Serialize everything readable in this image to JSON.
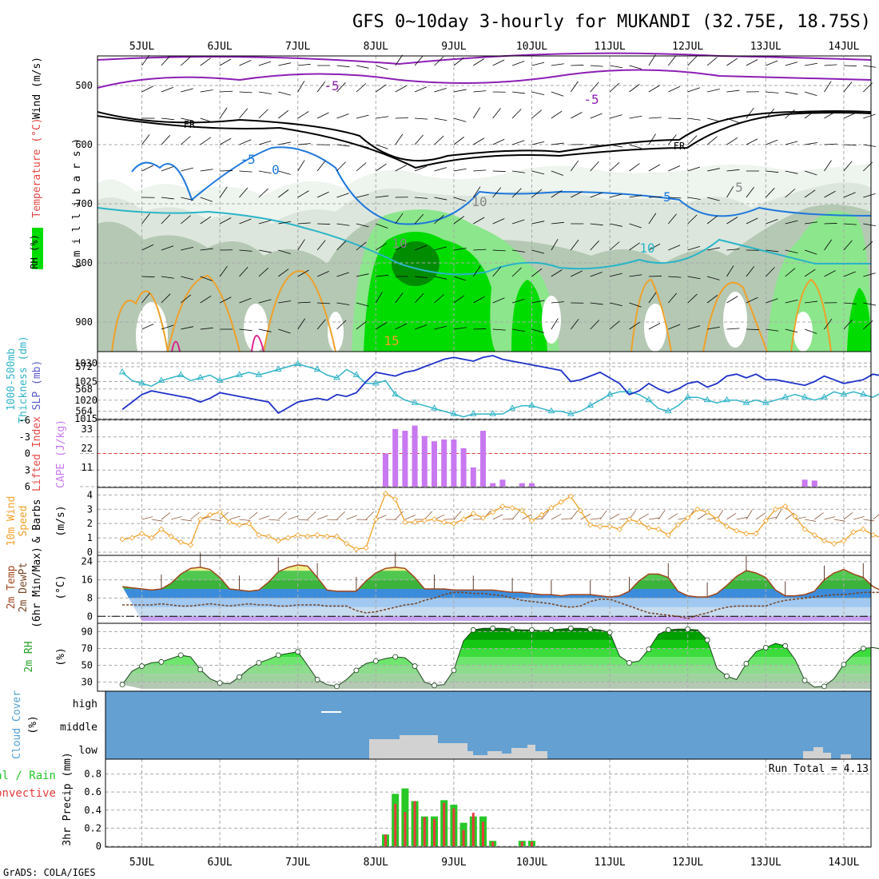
{
  "title": "GFS 0~10day 3-hourly for MUKANDI (32.75E, 18.75S)",
  "credit": "GrADS: COLA/IGES",
  "dates": [
    "5JUL",
    "6JUL",
    "7JUL",
    "8JUL",
    "9JUL",
    "10JUL",
    "11JUL",
    "12JUL",
    "13JUL",
    "14JUL"
  ],
  "panel_labels": {
    "upper_air": [
      "RH (%)",
      "Temperature (°C)",
      "Wind (m/s)",
      "( m i l l i b a r s )"
    ],
    "slp": [
      "1000-500mb",
      "Thickness (dm)",
      "SLP (mb)"
    ],
    "li": [
      "Lifted Index",
      "CAPE (J/kg)"
    ],
    "wind10": [
      "10m Wind",
      "Speed",
      "& Barbs",
      "(m/s)"
    ],
    "temp": [
      "2m Temp",
      "2m DewPt",
      "(6hr Min/Max)",
      "(°C)"
    ],
    "rh": [
      "2m RH",
      "(%)"
    ],
    "cloud": [
      "Cloud Cover",
      "(%)"
    ],
    "precip": [
      "Total / Rain",
      "Convective",
      "3hr Precip (mm)"
    ]
  },
  "run_total": "Run Total = 4.13",
  "contour_labels": [
    "-5",
    "-5",
    "FR",
    "FR",
    "-5",
    "0",
    "5",
    "10",
    "10",
    "5",
    "10",
    "15"
  ],
  "colors": {
    "rh_dark": "#008c00",
    "rh_green": "#00dc00",
    "rh_light": "#8ce68c",
    "rh_gray1": "#b4c8b4",
    "rh_gray2": "#dce6dc",
    "rh_gray3": "#eef4ee",
    "slp": "#1e32c8",
    "thickness": "#32b4c8",
    "cape": "#c878f0",
    "li": "#e64646",
    "wind_speed": "#f0a028",
    "barbs": "#8c5a3c",
    "temp": "#a0461e",
    "cloud_bg": "#64a0d2",
    "cloud_low": "#d2d2d2",
    "precip_total": "#28c828",
    "precip_conv": "#e63c3c"
  },
  "chart_data": [
    {
      "type": "contour",
      "name": "upper-air cross-section",
      "ylabel": "millibars",
      "yticks": [
        500,
        600,
        700,
        800,
        900
      ],
      "ylim": [
        450,
        950
      ],
      "contours_labeled": {
        "temperature_c": [
          -5,
          0,
          5,
          10,
          15
        ],
        "freezing_level": "FR"
      }
    },
    {
      "type": "line",
      "name": "SLP and 1000-500mb thickness",
      "y_left_ticks": [
        564,
        568,
        572
      ],
      "y_right_ticks": [
        1015,
        1020,
        1025,
        1030
      ],
      "series": [
        {
          "name": "SLP (mb)",
          "values": [
            1017.5,
            1019.5,
            1021.5,
            1022.5,
            1022,
            1021.5,
            1021,
            1020.5,
            1019.5,
            1020.5,
            1022,
            1021.5,
            1021,
            1020.5,
            1020,
            1019.5,
            1016.5,
            1018,
            1019.5,
            1020,
            1020.5,
            1020,
            1021.5,
            1021,
            1022,
            1025,
            1027.5,
            1027,
            1026.5,
            1027.5,
            1028,
            1029,
            1030,
            1031,
            1031.5,
            1031,
            1030.5,
            1031.5,
            1032,
            1031,
            1030.5,
            1030,
            1029.5,
            1029,
            1028.5,
            1028,
            1025,
            1025.5,
            1026.5,
            1027.5,
            1026,
            1024.5,
            1021.5,
            1022.5,
            1024.5,
            1023,
            1022,
            1023,
            1024.5,
            1025,
            1023.5,
            1024.5,
            1026.5,
            1027,
            1026,
            1027,
            1025.5,
            1025.5,
            1025,
            1024.5,
            1024,
            1025,
            1026.5,
            1025.5,
            1024.5,
            1025,
            1025.5,
            1027,
            1026.5,
            1027
          ]
        },
        {
          "name": "Thickness (dm)",
          "values": [
            571,
            569.5,
            569,
            568.5,
            569.5,
            570,
            570.5,
            569.5,
            570,
            570.5,
            569.5,
            570,
            570.5,
            571,
            570.5,
            571,
            571.5,
            572,
            572.5,
            572,
            571.5,
            570.5,
            570,
            571.5,
            570.5,
            569,
            569,
            569.5,
            567,
            566,
            565.5,
            565,
            564.5,
            564,
            563.5,
            563,
            563.5,
            563.5,
            563.5,
            563.5,
            564.5,
            565,
            565,
            564.5,
            564,
            564,
            563.5,
            564,
            565,
            566,
            567,
            567.5,
            567.5,
            567,
            566,
            564.5,
            564,
            565,
            566.5,
            566.5,
            566,
            565.5,
            566,
            566,
            565.5,
            566,
            565.5,
            566,
            566.5,
            567,
            566.5,
            566,
            566.5,
            567.5,
            567,
            567.5,
            567,
            566.5,
            567.5,
            567
          ]
        }
      ]
    },
    {
      "type": "bar",
      "name": "CAPE and Lifted Index",
      "y_left_label": "Lifted Index",
      "y_left_ticks": [
        -6,
        -3,
        0,
        3,
        6
      ],
      "y_right_label": "CAPE (J/kg)",
      "y_right_ticks": [
        11,
        22,
        33
      ],
      "reference_line": {
        "lifted_index": 0
      },
      "series": [
        {
          "name": "CAPE (J/kg)",
          "points": [
            {
              "date": "8JUL 03Z",
              "value": 19
            },
            {
              "date": "8JUL 06Z",
              "value": 33
            },
            {
              "date": "8JUL 09Z",
              "value": 32
            },
            {
              "date": "8JUL 12Z",
              "value": 35
            },
            {
              "date": "8JUL 15Z",
              "value": 29
            },
            {
              "date": "8JUL 18Z",
              "value": 26
            },
            {
              "date": "8JUL 21Z",
              "value": 27
            },
            {
              "date": "9JUL 00Z",
              "value": 27
            },
            {
              "date": "9JUL 03Z",
              "value": 22
            },
            {
              "date": "9JUL 06Z",
              "value": 11
            },
            {
              "date": "9JUL 09Z",
              "value": 32
            },
            {
              "date": "9JUL 12Z",
              "value": 2
            },
            {
              "date": "9JUL 15Z",
              "value": 4
            },
            {
              "date": "9JUL 21Z",
              "value": 2
            },
            {
              "date": "10JUL 00Z",
              "value": 2
            },
            {
              "date": "13JUL 12Z",
              "value": 4
            },
            {
              "date": "13JUL 15Z",
              "value": 3.5
            }
          ]
        }
      ]
    },
    {
      "type": "line",
      "name": "10m wind speed",
      "ylabel": "(m/s)",
      "yticks": [
        0,
        1,
        2,
        3,
        4
      ],
      "ylim": [
        0,
        4.3
      ],
      "series": [
        {
          "name": "10m Wind Speed",
          "values": [
            0.9,
            1.0,
            1.3,
            1.0,
            1.6,
            1.1,
            0.7,
            0.5,
            2.3,
            2.6,
            2.8,
            2.1,
            1.9,
            2.0,
            1.2,
            1.1,
            0.8,
            1.0,
            1.2,
            1.1,
            1.2,
            1.1,
            1.1,
            0.6,
            0.2,
            0.3,
            2.3,
            4.1,
            3.7,
            2.1,
            2.1,
            2.2,
            2.3,
            2.1,
            2.0,
            2.3,
            2.7,
            2.4,
            2.8,
            3.2,
            3.1,
            2.9,
            2.2,
            2.6,
            3.1,
            3.5,
            3.9,
            2.9,
            1.9,
            1.8,
            1.8,
            1.6,
            2.3,
            2.1,
            1.7,
            1.6,
            1.2,
            1.9,
            2.4,
            3.0,
            2.8,
            2.3,
            1.8,
            1.5,
            1.3,
            1.3,
            2.2,
            3.0,
            3.2,
            2.5,
            1.6,
            1.2,
            0.8,
            0.6,
            0.8,
            1.4,
            1.6,
            1.2,
            1.0,
            1.7
          ]
        }
      ]
    },
    {
      "type": "area",
      "name": "2m temperature and dewpoint",
      "ylabel": "(°C)",
      "yticks": [
        0,
        8,
        16,
        24
      ],
      "ylim": [
        -2,
        26
      ],
      "series": [
        {
          "name": "2m Temp",
          "values": [
            13,
            12.5,
            12,
            11.5,
            12,
            14.5,
            18.5,
            21,
            21.5,
            20.5,
            17,
            12,
            11.5,
            11,
            11.5,
            15,
            19.5,
            21.5,
            22.5,
            22,
            17,
            11.5,
            11,
            11,
            11,
            15.5,
            19,
            21,
            21.5,
            21,
            17,
            12,
            12,
            12,
            11.5,
            11.5,
            11.5,
            11.5,
            11.5,
            11,
            10.5,
            10.5,
            10,
            9.5,
            9.5,
            9,
            9.5,
            9.5,
            9.5,
            9,
            8.5,
            9,
            11,
            15.5,
            18.5,
            18.5,
            17,
            11,
            9,
            8.5,
            8.5,
            10,
            13.5,
            17.5,
            20,
            19,
            17,
            11.5,
            9,
            9,
            9.5,
            11,
            16,
            19,
            20.5,
            18.5,
            17,
            13,
            11,
            11
          ]
        },
        {
          "name": "2m DewPt",
          "values": [
            5,
            5,
            5,
            5,
            5.5,
            5,
            4.5,
            4.5,
            5,
            5.5,
            5,
            4.5,
            5,
            5.5,
            5,
            5,
            4.5,
            4.5,
            5,
            5,
            5,
            4.5,
            4.5,
            4.5,
            2.5,
            1.5,
            2,
            3,
            4,
            5,
            5.5,
            7,
            8,
            9.5,
            10.5,
            10.5,
            10,
            10,
            9.5,
            9,
            8,
            7,
            6.5,
            6,
            5.5,
            4.5,
            4,
            4.5,
            6.5,
            7.5,
            7.5,
            6,
            4.5,
            3,
            1.5,
            1,
            0.5,
            0,
            -1,
            0.5,
            1.5,
            3,
            4,
            4.5,
            4.5,
            4.5,
            4.5,
            6,
            7,
            7.5,
            8,
            8.5,
            9,
            9.5,
            9.5,
            10,
            10.5,
            10.5,
            10.5,
            10.5
          ]
        }
      ]
    },
    {
      "type": "area",
      "name": "2m relative humidity",
      "ylabel": "(%)",
      "yticks": [
        30,
        50,
        70,
        90
      ],
      "ylim": [
        22,
        98
      ],
      "series": [
        {
          "name": "2m RH",
          "values": [
            27,
            43,
            49,
            53,
            54,
            58,
            62,
            60,
            45,
            34,
            29,
            28,
            36,
            46,
            53,
            57,
            62,
            64,
            66,
            50,
            33,
            27,
            25,
            33,
            44,
            52,
            55,
            58,
            60,
            59,
            49,
            30,
            26,
            27,
            44,
            79,
            92,
            94,
            94,
            94,
            93,
            92,
            92,
            91,
            92,
            93,
            94,
            94,
            93,
            92,
            89,
            61,
            53,
            55,
            69,
            87,
            92,
            93,
            93,
            92,
            80,
            46,
            37,
            33,
            52,
            66,
            71,
            76,
            73,
            57,
            32,
            24,
            25,
            34,
            51,
            63,
            70,
            71,
            69,
            56
          ]
        }
      ]
    },
    {
      "type": "bar",
      "name": "cloud cover",
      "yticks": [
        "high",
        "middle",
        "low"
      ],
      "series": [
        {
          "name": "Low cloud",
          "points": [
            {
              "date": "8JUL",
              "value": "partial"
            },
            {
              "date": "9JUL",
              "value": "partial"
            },
            {
              "date": "10JUL",
              "value": "small"
            },
            {
              "date": "13JUL",
              "value": "small"
            }
          ]
        }
      ]
    },
    {
      "type": "bar",
      "name": "3hr precipitation",
      "ylabel": "3hr Precip (mm)",
      "yticks": [
        0,
        0.2,
        0.4,
        0.6,
        0.8
      ],
      "ylim": [
        0,
        0.92
      ],
      "series": [
        {
          "name": "Total / Rain",
          "points": [
            {
              "date": "8JUL 03Z",
              "value": 0.13
            },
            {
              "date": "8JUL 06Z",
              "value": 0.58
            },
            {
              "date": "8JUL 09Z",
              "value": 0.64
            },
            {
              "date": "8JUL 12Z",
              "value": 0.5
            },
            {
              "date": "8JUL 15Z",
              "value": 0.33
            },
            {
              "date": "8JUL 18Z",
              "value": 0.33
            },
            {
              "date": "8JUL 21Z",
              "value": 0.51
            },
            {
              "date": "9JUL 00Z",
              "value": 0.46
            },
            {
              "date": "9JUL 03Z",
              "value": 0.26
            },
            {
              "date": "9JUL 06Z",
              "value": 0.33
            },
            {
              "date": "9JUL 09Z",
              "value": 0.33
            },
            {
              "date": "9JUL 12Z",
              "value": 0.06
            },
            {
              "date": "9JUL 21Z",
              "value": 0.06
            },
            {
              "date": "10JUL 00Z",
              "value": 0.06
            }
          ]
        },
        {
          "name": "Convective",
          "points": [
            {
              "date": "8JUL 03Z",
              "value": 0.13
            },
            {
              "date": "8JUL 06Z",
              "value": 0.47
            },
            {
              "date": "8JUL 09Z",
              "value": 0.38
            },
            {
              "date": "8JUL 12Z",
              "value": 0.5
            },
            {
              "date": "8JUL 15Z",
              "value": 0.32
            },
            {
              "date": "8JUL 18Z",
              "value": 0.3
            },
            {
              "date": "8JUL 21Z",
              "value": 0.48
            },
            {
              "date": "9JUL 00Z",
              "value": 0.42
            },
            {
              "date": "9JUL 03Z",
              "value": 0.18
            },
            {
              "date": "9JUL 06Z",
              "value": 0.37
            },
            {
              "date": "9JUL 09Z",
              "value": 0.27
            },
            {
              "date": "9JUL 12Z",
              "value": 0.05
            },
            {
              "date": "9JUL 21Z",
              "value": 0.05
            },
            {
              "date": "10JUL 00Z",
              "value": 0.05
            }
          ]
        }
      ]
    }
  ]
}
